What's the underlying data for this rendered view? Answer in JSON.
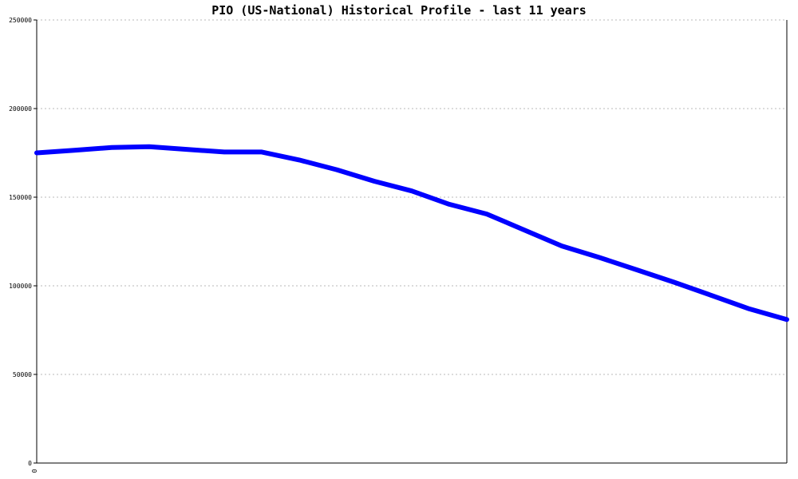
{
  "chart_data": {
    "type": "line",
    "title": "PIO (US-National) Historical Profile - last 11 years",
    "xlabel": "",
    "ylabel": "",
    "ylim": [
      0,
      250000
    ],
    "yticks": [
      0,
      50000,
      100000,
      150000,
      200000,
      250000
    ],
    "ytick_labels": [
      "0",
      "50000",
      "100000",
      "150000",
      "200000",
      "250000"
    ],
    "xtick_labels": [
      "0"
    ],
    "grid": true,
    "legend": "none",
    "line_color": "#0000ff",
    "series": [
      {
        "values": [
          175000,
          176500,
          178000,
          178500,
          177000,
          175500,
          175500,
          171000,
          165500,
          159000,
          153500,
          146000,
          140500,
          131500,
          122500,
          116000,
          109000,
          102000,
          94500,
          87000,
          81000
        ]
      }
    ]
  }
}
